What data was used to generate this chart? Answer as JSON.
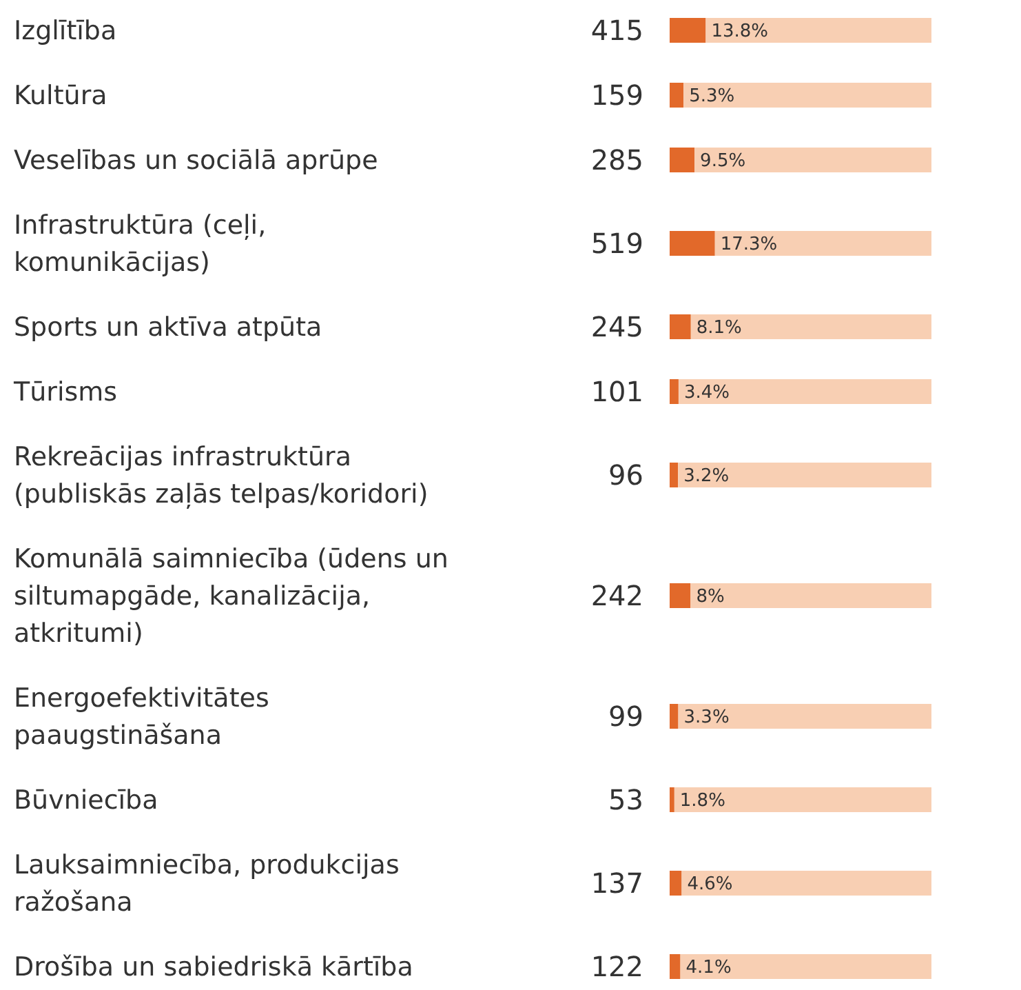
{
  "chart_data": {
    "type": "bar",
    "orientation": "horizontal",
    "stacked": true,
    "categories": [
      "Izglītība",
      "Kultūra",
      "Veselības un sociālā aprūpe",
      "Infrastruktūra (ceļi,\nkomunikācijas)",
      "Sports un aktīva atpūta",
      "Tūrisms",
      "Rekreācijas infrastruktūra\n(publiskās zaļās telpas/koridori)",
      "Komunālā saimniecība (ūdens un\nsiltumapgāde, kanalizācija,\natkritumi)",
      "Energoefektivitātes\npaaugstināšana",
      "Būvniecība",
      "Lauksaimniecība, produkcijas\nražošana",
      "Drošība un sabiedriskā kārtība"
    ],
    "series": [
      {
        "color": "#e2692a",
        "values": [
          13.8,
          5.3,
          9.5,
          17.3,
          8.1,
          3.4,
          3.2,
          8,
          3.3,
          1.8,
          4.6,
          4.1
        ],
        "value_labels": [
          "13.8%",
          "5.3%",
          "9.5%",
          "17.3%",
          "8.1%",
          "3.4%",
          "3.2%",
          "8%",
          "3.3%",
          "1.8%",
          "4.6%",
          "4.1%"
        ]
      },
      {
        "color": "#f8cfb3",
        "values": [
          86.2,
          94.7,
          90.5,
          82.7,
          91.9,
          96.6,
          96.8,
          92,
          96.7,
          98.2,
          95.4,
          95.9
        ]
      }
    ],
    "xlim": [
      0,
      100
    ],
    "annotations": [
      "415",
      "159",
      "285",
      "519",
      "245",
      "101",
      "96",
      "242",
      "99",
      "53",
      "137",
      "122"
    ]
  }
}
